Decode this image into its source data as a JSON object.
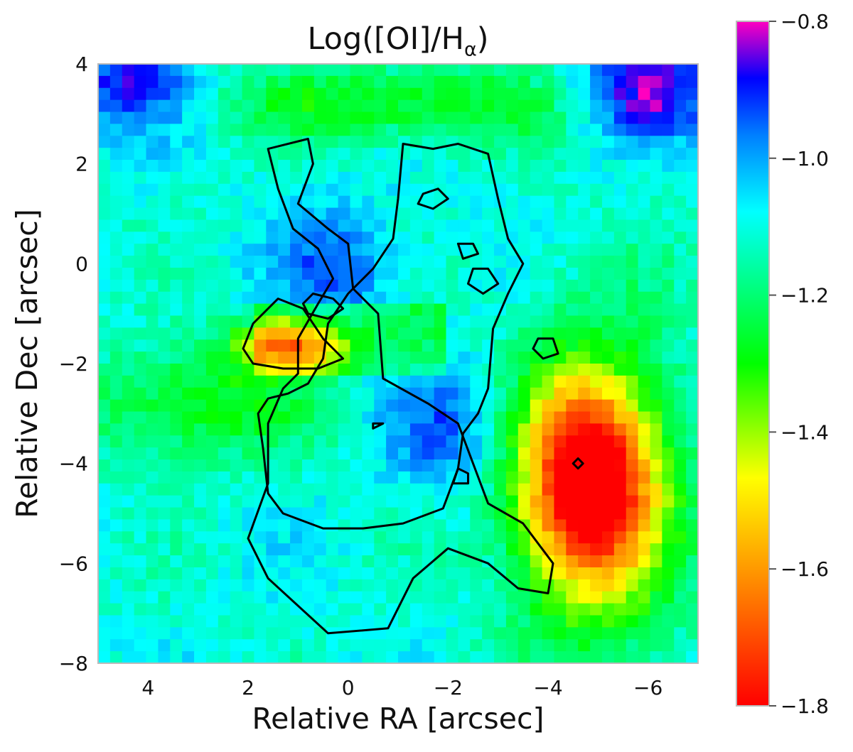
{
  "chart_data": {
    "type": "heatmap",
    "title": "Log([OI]/H",
    "title_subscript": "α",
    "title_suffix": ")",
    "xlabel": "Relative RA [arcsec]",
    "ylabel": "Relative Dec [arcsec]",
    "xlim": [
      5.0,
      -7.0
    ],
    "ylim": [
      -8,
      4
    ],
    "xticks": [
      4,
      2,
      0,
      -2,
      -4,
      -6
    ],
    "xtick_labels": [
      "4",
      "2",
      "0",
      "−2",
      "−4",
      "−6"
    ],
    "yticks": [
      4,
      2,
      0,
      -2,
      -4,
      -6,
      -8
    ],
    "ytick_labels": [
      "4",
      "2",
      "0",
      "−2",
      "−4",
      "−6",
      "−8"
    ],
    "colorbar": {
      "range": [
        -1.8,
        -0.8
      ],
      "ticks": [
        -0.8,
        -1.0,
        -1.2,
        -1.4,
        -1.6,
        -1.8
      ],
      "tick_labels": [
        "−0.8",
        "−1.0",
        "−1.2",
        "−1.4",
        "−1.6",
        "−1.8"
      ],
      "colormap": "gist_rainbow (reversed: red low → magenta high)"
    },
    "background_level": -1.1,
    "features": [
      {
        "name": "red knot",
        "x": -4.8,
        "y": -4.4,
        "value": -1.78
      },
      {
        "name": "yellow band",
        "x": 1.2,
        "y": -1.6,
        "value": -1.52
      },
      {
        "name": "purple knot north",
        "x": 0.2,
        "y": -0.1,
        "value": -0.95
      },
      {
        "name": "purple knot south",
        "x": -2.0,
        "y": -3.3,
        "value": -0.95
      },
      {
        "name": "magenta corner NE",
        "x": 4.5,
        "y": 3.6,
        "value": -0.88
      },
      {
        "name": "magenta corner NW",
        "x": -6.0,
        "y": 3.5,
        "value": -0.83
      },
      {
        "name": "green band north",
        "x": -1.0,
        "y": 3.2,
        "value": -1.3
      },
      {
        "name": "green band east",
        "x": 3.0,
        "y": -2.8,
        "value": -1.3
      }
    ],
    "contours": [
      {
        "level": "outer",
        "points": [
          [
            1.6,
            2.3
          ],
          [
            0.8,
            2.5
          ],
          [
            0.7,
            2.0
          ],
          [
            1.0,
            1.2
          ],
          [
            0.4,
            0.7
          ],
          [
            0.0,
            0.4
          ],
          [
            -0.1,
            -0.5
          ],
          [
            -0.6,
            -1.0
          ],
          [
            -0.7,
            -2.3
          ],
          [
            -1.6,
            -2.8
          ],
          [
            -2.2,
            -3.2
          ],
          [
            -2.8,
            -4.8
          ],
          [
            -3.5,
            -5.2
          ],
          [
            -4.1,
            -6.0
          ],
          [
            -4.0,
            -6.6
          ],
          [
            -3.4,
            -6.5
          ],
          [
            -2.8,
            -6.0
          ],
          [
            -2.0,
            -5.7
          ],
          [
            -1.3,
            -6.3
          ],
          [
            -0.8,
            -7.3
          ],
          [
            0.4,
            -7.4
          ],
          [
            1.6,
            -6.3
          ],
          [
            2.0,
            -5.5
          ],
          [
            1.6,
            -4.4
          ],
          [
            1.6,
            -3.2
          ],
          [
            1.3,
            -2.5
          ],
          [
            1.0,
            -2.2
          ],
          [
            1.0,
            -1.5
          ],
          [
            0.6,
            -0.8
          ],
          [
            0.3,
            -0.3
          ],
          [
            0.6,
            0.3
          ],
          [
            1.1,
            0.7
          ],
          [
            1.4,
            1.5
          ],
          [
            1.6,
            2.3
          ]
        ]
      },
      {
        "level": "middle",
        "points": [
          [
            -1.1,
            2.4
          ],
          [
            -1.7,
            2.3
          ],
          [
            -2.2,
            2.4
          ],
          [
            -2.8,
            2.2
          ],
          [
            -3.0,
            1.3
          ],
          [
            -3.2,
            0.5
          ],
          [
            -3.5,
            0.0
          ],
          [
            -3.2,
            -0.6
          ],
          [
            -2.9,
            -1.3
          ],
          [
            -2.8,
            -2.5
          ],
          [
            -2.6,
            -3.0
          ],
          [
            -2.3,
            -3.4
          ],
          [
            -2.2,
            -4.1
          ],
          [
            -1.9,
            -4.9
          ],
          [
            -1.1,
            -5.2
          ],
          [
            -0.3,
            -5.3
          ],
          [
            0.5,
            -5.3
          ],
          [
            1.3,
            -5.0
          ],
          [
            1.6,
            -4.6
          ],
          [
            1.7,
            -3.7
          ],
          [
            1.8,
            -3.0
          ],
          [
            1.6,
            -2.7
          ],
          [
            1.2,
            -2.6
          ],
          [
            0.8,
            -2.4
          ],
          [
            0.5,
            -1.9
          ],
          [
            0.4,
            -1.2
          ],
          [
            0.0,
            -0.6
          ],
          [
            -0.5,
            -0.1
          ],
          [
            -0.9,
            0.5
          ],
          [
            -1.0,
            1.3
          ],
          [
            -1.1,
            2.4
          ]
        ]
      },
      {
        "level": "inner",
        "points": [
          [
            0.1,
            -1.9
          ],
          [
            0.5,
            -1.5
          ],
          [
            0.9,
            -0.9
          ],
          [
            1.4,
            -0.7
          ],
          [
            1.9,
            -1.2
          ],
          [
            2.1,
            -1.7
          ],
          [
            1.9,
            -2.0
          ],
          [
            1.3,
            -2.1
          ],
          [
            0.6,
            -2.1
          ],
          [
            0.1,
            -1.9
          ]
        ]
      },
      {
        "level": "core-1",
        "points": [
          [
            0.7,
            -0.6
          ],
          [
            0.3,
            -0.7
          ],
          [
            0.1,
            -0.9
          ],
          [
            0.4,
            -1.1
          ],
          [
            0.8,
            -1.0
          ],
          [
            0.9,
            -0.8
          ],
          [
            0.7,
            -0.6
          ]
        ]
      },
      {
        "level": "north-blob",
        "points": [
          [
            -1.5,
            1.4
          ],
          [
            -1.8,
            1.5
          ],
          [
            -2.0,
            1.3
          ],
          [
            -1.7,
            1.1
          ],
          [
            -1.4,
            1.2
          ],
          [
            -1.5,
            1.4
          ]
        ]
      },
      {
        "level": "knot-a",
        "points": [
          [
            -2.2,
            0.4
          ],
          [
            -2.5,
            0.4
          ],
          [
            -2.6,
            0.2
          ],
          [
            -2.3,
            0.1
          ],
          [
            -2.2,
            0.4
          ]
        ]
      },
      {
        "level": "knot-b",
        "points": [
          [
            -2.5,
            -0.1
          ],
          [
            -2.8,
            -0.1
          ],
          [
            -3.0,
            -0.4
          ],
          [
            -2.7,
            -0.6
          ],
          [
            -2.4,
            -0.4
          ],
          [
            -2.5,
            -0.1
          ]
        ]
      },
      {
        "level": "knot-c",
        "points": [
          [
            -3.8,
            -1.5
          ],
          [
            -4.1,
            -1.5
          ],
          [
            -4.2,
            -1.8
          ],
          [
            -3.9,
            -1.9
          ],
          [
            -3.7,
            -1.7
          ],
          [
            -3.8,
            -1.5
          ]
        ]
      },
      {
        "level": "knot-d",
        "points": [
          [
            -2.2,
            -4.1
          ],
          [
            -2.4,
            -4.2
          ],
          [
            -2.4,
            -4.4
          ],
          [
            -2.1,
            -4.4
          ],
          [
            -2.2,
            -4.1
          ]
        ]
      },
      {
        "level": "knot-e",
        "points": [
          [
            -0.5,
            -3.2
          ],
          [
            -0.7,
            -3.2
          ],
          [
            -0.5,
            -3.3
          ],
          [
            -0.5,
            -3.2
          ]
        ]
      },
      {
        "level": "knot-f",
        "points": [
          [
            -4.6,
            -3.9
          ],
          [
            -4.7,
            -4.0
          ],
          [
            -4.6,
            -4.1
          ],
          [
            -4.5,
            -4.0
          ],
          [
            -4.6,
            -3.9
          ]
        ]
      }
    ]
  }
}
